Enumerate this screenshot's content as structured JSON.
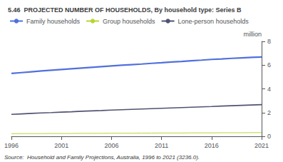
{
  "chart_data": {
    "type": "line",
    "title": "5.46  PROJECTED NUMBER OF HOUSEHOLDS, By household type: Series B",
    "ylabel": "million",
    "annotations": [
      "Source:  Household and Family Projections, Australia, 1996 to 2021 (3236.0)."
    ],
    "x": [
      1996,
      1997,
      1998,
      1999,
      2000,
      2001,
      2002,
      2003,
      2004,
      2005,
      2006,
      2007,
      2008,
      2009,
      2010,
      2011,
      2012,
      2013,
      2014,
      2015,
      2016,
      2017,
      2018,
      2019,
      2020,
      2021
    ],
    "series": [
      {
        "name": "Family households",
        "values": [
          5.3,
          5.37,
          5.44,
          5.51,
          5.57,
          5.63,
          5.69,
          5.75,
          5.81,
          5.87,
          5.93,
          5.99,
          6.04,
          6.09,
          6.15,
          6.2,
          6.26,
          6.31,
          6.37,
          6.42,
          6.48,
          6.52,
          6.57,
          6.61,
          6.65,
          6.69
        ]
      },
      {
        "name": "Group households",
        "values": [
          0.22,
          0.23,
          0.23,
          0.23,
          0.24,
          0.24,
          0.24,
          0.25,
          0.25,
          0.25,
          0.26,
          0.26,
          0.26,
          0.27,
          0.27,
          0.28,
          0.28,
          0.28,
          0.29,
          0.29,
          0.29,
          0.3,
          0.3,
          0.3,
          0.31,
          0.31
        ]
      },
      {
        "name": "Lone-person households",
        "values": [
          1.85,
          1.89,
          1.93,
          1.97,
          2.0,
          2.04,
          2.07,
          2.11,
          2.14,
          2.17,
          2.21,
          2.24,
          2.27,
          2.3,
          2.33,
          2.36,
          2.39,
          2.42,
          2.45,
          2.48,
          2.51,
          2.55,
          2.58,
          2.61,
          2.64,
          2.67
        ]
      }
    ],
    "xlim": [
      1996,
      2021
    ],
    "xticks": [
      1996,
      2001,
      2006,
      2011,
      2016,
      2021
    ],
    "ylim": [
      0,
      8
    ],
    "yticks": [
      0,
      2,
      4,
      6,
      8
    ],
    "grid": false,
    "legend": "top"
  }
}
